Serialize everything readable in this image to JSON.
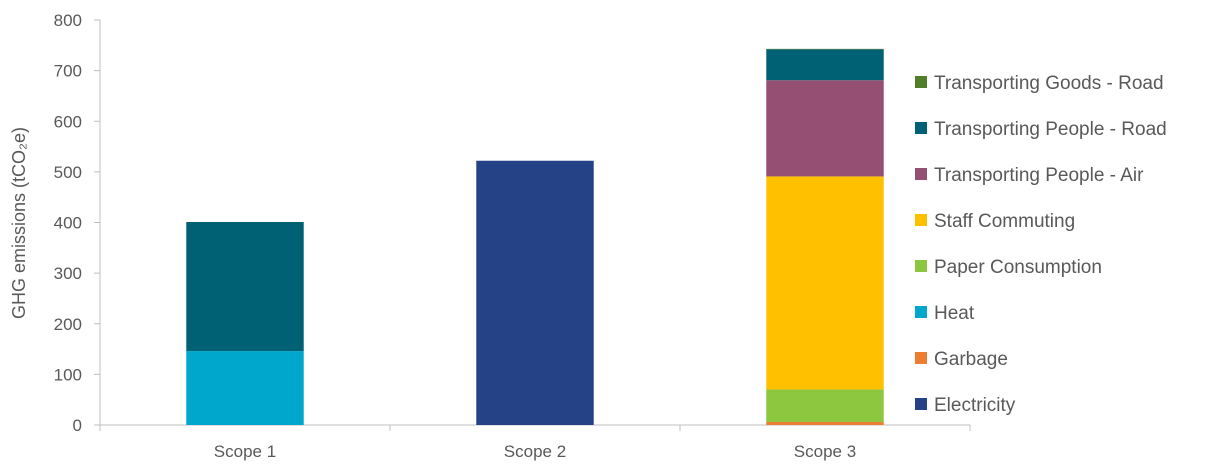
{
  "chart_data": {
    "type": "bar",
    "stacked": true,
    "categories": [
      "Scope 1",
      "Scope 2",
      "Scope 3"
    ],
    "ylabel": "GHG emissions (tCO₂e)",
    "ylim": [
      0,
      800
    ],
    "yticks": [
      0,
      100,
      200,
      300,
      400,
      500,
      600,
      700,
      800
    ],
    "grid": false,
    "legend_position": "right",
    "series": [
      {
        "name": "Electricity",
        "color": "#264287",
        "values": [
          0,
          522,
          0
        ]
      },
      {
        "name": "Garbage",
        "color": "#ED7D31",
        "values": [
          0,
          0,
          6
        ]
      },
      {
        "name": "Heat",
        "color": "#00A7CC",
        "values": [
          146,
          0,
          0
        ]
      },
      {
        "name": "Paper Consumption",
        "color": "#8DC63F",
        "values": [
          0,
          0,
          64
        ]
      },
      {
        "name": "Staff Commuting",
        "color": "#FFC000",
        "values": [
          0,
          0,
          421
        ]
      },
      {
        "name": "Transporting People - Air",
        "color": "#954F72",
        "values": [
          0,
          0,
          190
        ]
      },
      {
        "name": "Transporting People - Road",
        "color": "#006175",
        "values": [
          255,
          0,
          61
        ]
      },
      {
        "name": "Transporting Goods - Road",
        "color": "#4F7D28",
        "values": [
          0,
          0,
          1
        ]
      }
    ]
  }
}
